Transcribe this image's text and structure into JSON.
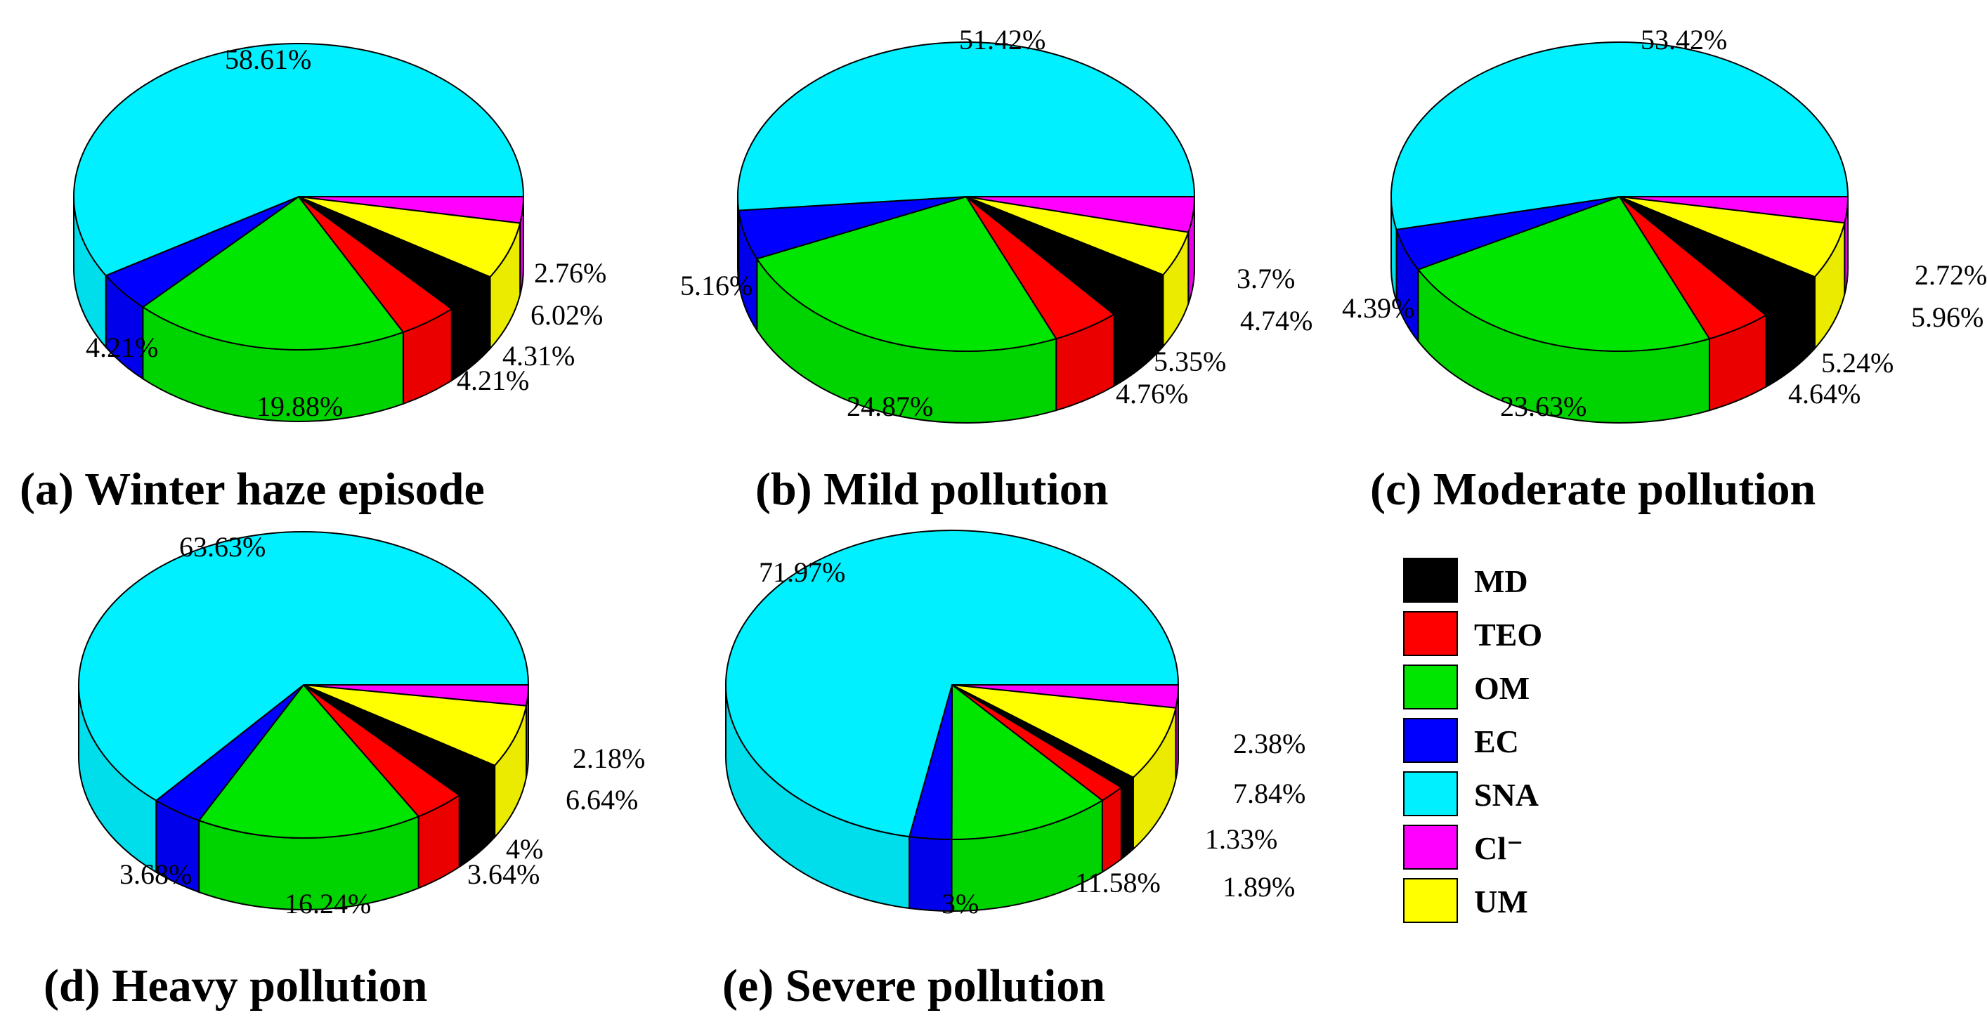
{
  "legend": {
    "items": [
      {
        "key": "MD",
        "label": "MD",
        "color": "#000000"
      },
      {
        "key": "TEO",
        "label": "TEO",
        "color": "#ff0000"
      },
      {
        "key": "OM",
        "label": "OM",
        "color": "#00e600"
      },
      {
        "key": "EC",
        "label": "EC",
        "color": "#0000ff"
      },
      {
        "key": "SNA",
        "label": "SNA",
        "color": "#00f0ff"
      },
      {
        "key": "Cl",
        "label": "Cl⁻",
        "color": "#ff00ff"
      },
      {
        "key": "UM",
        "label": "UM",
        "color": "#ffff00"
      }
    ]
  },
  "chart_data": [
    {
      "type": "pie",
      "title": "(a) Winter haze episode",
      "slices": [
        {
          "category": "SNA",
          "value": 58.61,
          "label": "58.61%"
        },
        {
          "category": "EC",
          "value": 4.21,
          "label": "4.21%"
        },
        {
          "category": "OM",
          "value": 19.88,
          "label": "19.88%"
        },
        {
          "category": "TEO",
          "value": 4.21,
          "label": "4.21%"
        },
        {
          "category": "MD",
          "value": 4.31,
          "label": "4.31%"
        },
        {
          "category": "UM",
          "value": 6.02,
          "label": "6.02%"
        },
        {
          "category": "Cl",
          "value": 2.76,
          "label": "2.76%"
        }
      ]
    },
    {
      "type": "pie",
      "title": "(b) Mild pollution",
      "slices": [
        {
          "category": "SNA",
          "value": 51.42,
          "label": "51.42%"
        },
        {
          "category": "EC",
          "value": 5.16,
          "label": "5.16%"
        },
        {
          "category": "OM",
          "value": 24.87,
          "label": "24.87%"
        },
        {
          "category": "TEO",
          "value": 4.76,
          "label": "4.76%"
        },
        {
          "category": "MD",
          "value": 5.35,
          "label": "5.35%"
        },
        {
          "category": "UM",
          "value": 4.74,
          "label": "4.74%"
        },
        {
          "category": "Cl",
          "value": 3.7,
          "label": "3.7%"
        }
      ]
    },
    {
      "type": "pie",
      "title": "(c) Moderate pollution",
      "slices": [
        {
          "category": "SNA",
          "value": 53.42,
          "label": "53.42%"
        },
        {
          "category": "EC",
          "value": 4.39,
          "label": "4.39%"
        },
        {
          "category": "OM",
          "value": 23.63,
          "label": "23.63%"
        },
        {
          "category": "TEO",
          "value": 4.64,
          "label": "4.64%"
        },
        {
          "category": "MD",
          "value": 5.24,
          "label": "5.24%"
        },
        {
          "category": "UM",
          "value": 5.96,
          "label": "5.96%"
        },
        {
          "category": "Cl",
          "value": 2.72,
          "label": "2.72%"
        }
      ]
    },
    {
      "type": "pie",
      "title": "(d) Heavy pollution",
      "slices": [
        {
          "category": "SNA",
          "value": 63.63,
          "label": "63.63%"
        },
        {
          "category": "EC",
          "value": 3.68,
          "label": "3.68%"
        },
        {
          "category": "OM",
          "value": 16.24,
          "label": "16.24%"
        },
        {
          "category": "TEO",
          "value": 3.64,
          "label": "3.64%"
        },
        {
          "category": "MD",
          "value": 4,
          "label": "4%"
        },
        {
          "category": "UM",
          "value": 6.64,
          "label": "6.64%"
        },
        {
          "category": "Cl",
          "value": 2.18,
          "label": "2.18%"
        }
      ]
    },
    {
      "type": "pie",
      "title": "(e) Severe pollution",
      "slices": [
        {
          "category": "SNA",
          "value": 71.97,
          "label": "71.97%"
        },
        {
          "category": "EC",
          "value": 3,
          "label": "3%"
        },
        {
          "category": "OM",
          "value": 11.58,
          "label": "11.58%"
        },
        {
          "category": "TEO",
          "value": 1.89,
          "label": "1.89%"
        },
        {
          "category": "MD",
          "value": 1.33,
          "label": "1.33%"
        },
        {
          "category": "UM",
          "value": 7.84,
          "label": "7.84%"
        },
        {
          "category": "Cl",
          "value": 2.38,
          "label": "2.38%"
        }
      ]
    }
  ]
}
